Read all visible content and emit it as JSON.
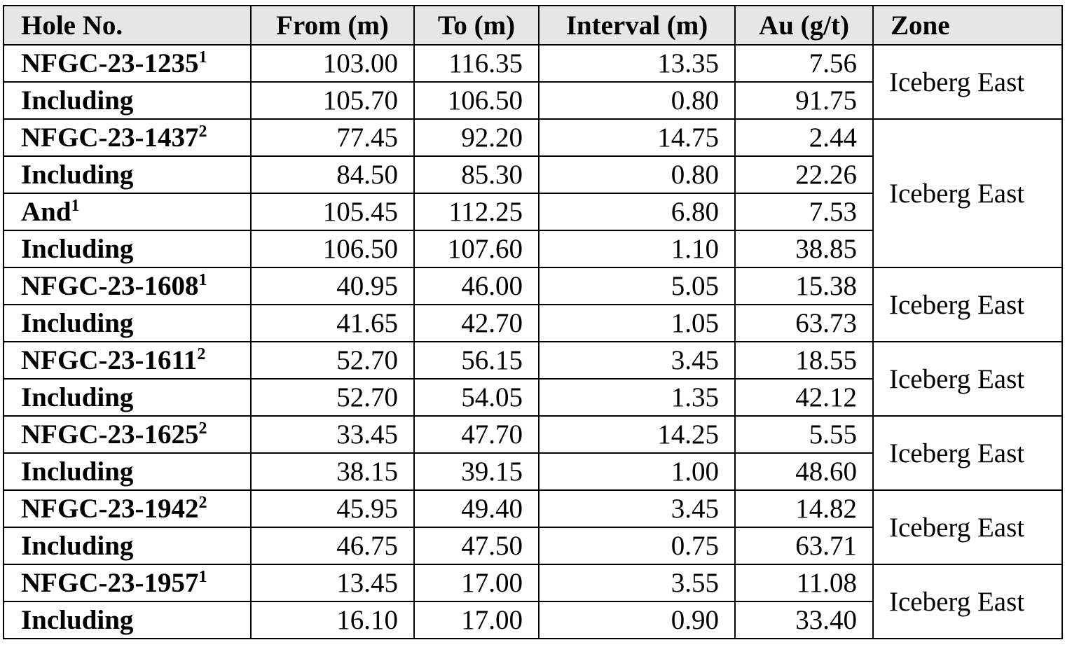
{
  "table": {
    "columns": [
      "Hole No.",
      "From (m)",
      "To (m)",
      "Interval (m)",
      "Au (g/t)",
      "Zone"
    ],
    "groups": [
      {
        "zone": "Iceberg East",
        "rows": [
          {
            "hole": "NFGC-23-1235",
            "note": "1",
            "from": "103.00",
            "to": "116.35",
            "interval": "13.35",
            "au": "7.56"
          },
          {
            "hole": "Including",
            "from": "105.70",
            "to": "106.50",
            "interval": "0.80",
            "au": "91.75"
          }
        ]
      },
      {
        "zone": "Iceberg East",
        "rows": [
          {
            "hole": "NFGC-23-1437",
            "note": "2",
            "from": "77.45",
            "to": "92.20",
            "interval": "14.75",
            "au": "2.44"
          },
          {
            "hole": "Including",
            "from": "84.50",
            "to": "85.30",
            "interval": "0.80",
            "au": "22.26"
          },
          {
            "hole": "And",
            "note": "1",
            "from": "105.45",
            "to": "112.25",
            "interval": "6.80",
            "au": "7.53"
          },
          {
            "hole": "Including",
            "from": "106.50",
            "to": "107.60",
            "interval": "1.10",
            "au": "38.85"
          }
        ]
      },
      {
        "zone": "Iceberg East",
        "rows": [
          {
            "hole": "NFGC-23-1608",
            "note": "1",
            "from": "40.95",
            "to": "46.00",
            "interval": "5.05",
            "au": "15.38"
          },
          {
            "hole": "Including",
            "from": "41.65",
            "to": "42.70",
            "interval": "1.05",
            "au": "63.73"
          }
        ]
      },
      {
        "zone": "Iceberg East",
        "rows": [
          {
            "hole": "NFGC-23-1611",
            "note": "2",
            "from": "52.70",
            "to": "56.15",
            "interval": "3.45",
            "au": "18.55"
          },
          {
            "hole": "Including",
            "from": "52.70",
            "to": "54.05",
            "interval": "1.35",
            "au": "42.12"
          }
        ]
      },
      {
        "zone": "Iceberg East",
        "rows": [
          {
            "hole": "NFGC-23-1625",
            "note": "2",
            "from": "33.45",
            "to": "47.70",
            "interval": "14.25",
            "au": "5.55"
          },
          {
            "hole": "Including",
            "from": "38.15",
            "to": "39.15",
            "interval": "1.00",
            "au": "48.60"
          }
        ]
      },
      {
        "zone": "Iceberg East",
        "rows": [
          {
            "hole": "NFGC-23-1942",
            "note": "2",
            "from": "45.95",
            "to": "49.40",
            "interval": "3.45",
            "au": "14.82"
          },
          {
            "hole": "Including",
            "from": "46.75",
            "to": "47.50",
            "interval": "0.75",
            "au": "63.71"
          }
        ]
      },
      {
        "zone": "Iceberg East",
        "rows": [
          {
            "hole": "NFGC-23-1957",
            "note": "1",
            "from": "13.45",
            "to": "17.00",
            "interval": "3.55",
            "au": "11.08"
          },
          {
            "hole": "Including",
            "from": "16.10",
            "to": "17.00",
            "interval": "0.90",
            "au": "33.40"
          }
        ]
      }
    ]
  }
}
